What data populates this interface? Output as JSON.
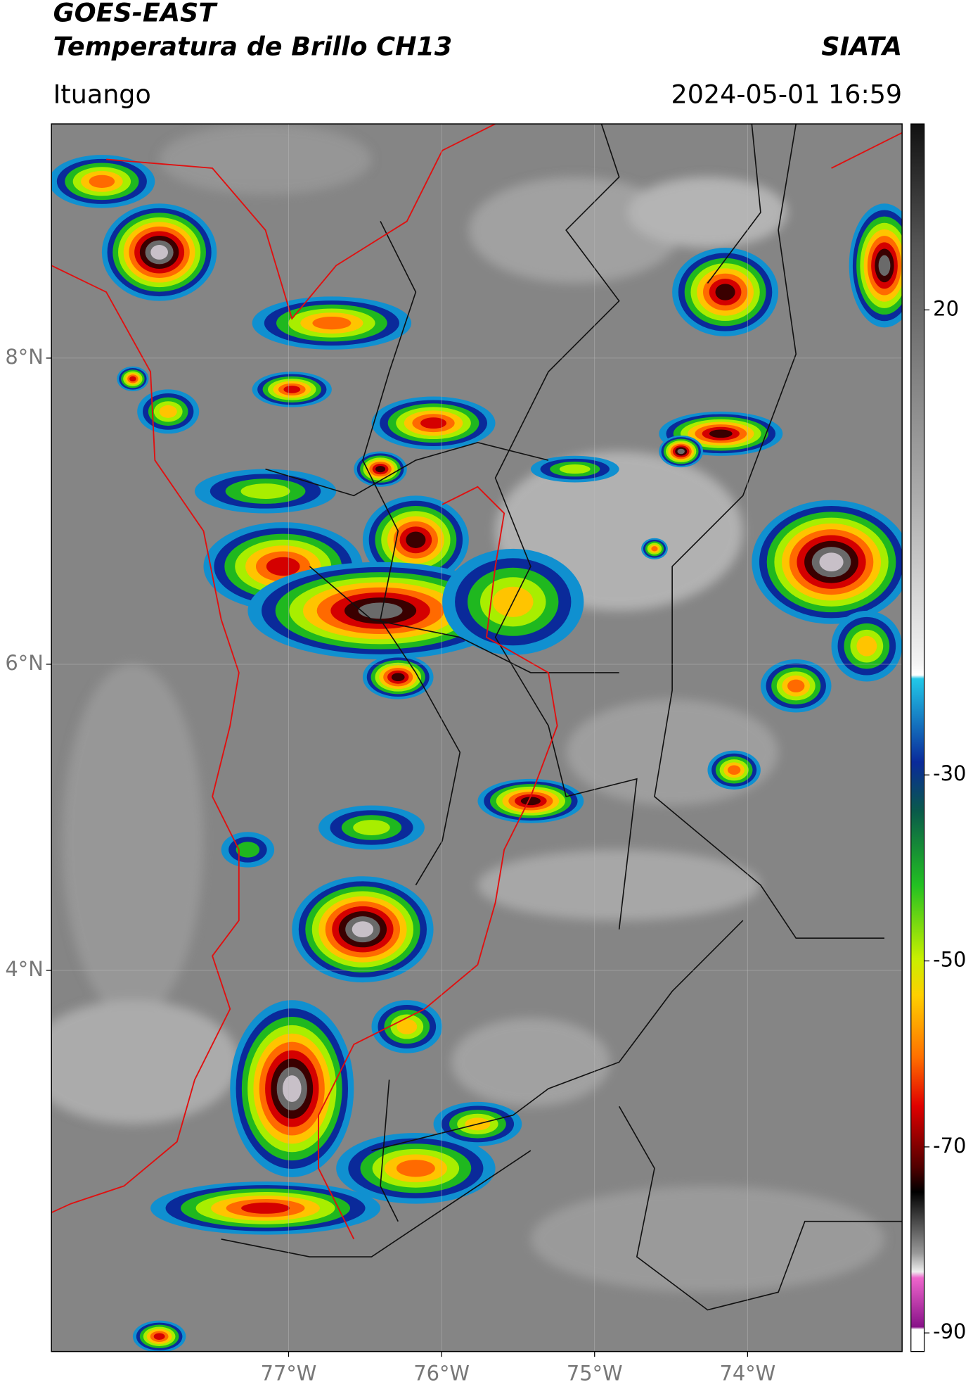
{
  "header": {
    "title": "GOES-EAST",
    "subtitle": "Temperatura de Brillo CH13",
    "source": "SIATA",
    "region": "Ituango",
    "datetime": "2024-05-01 16:59"
  },
  "map": {
    "xlim": [
      -78.55,
      -72.99
    ],
    "ylim": [
      1.51,
      9.53
    ],
    "xticks": [
      {
        "value": -77,
        "label": "77°W"
      },
      {
        "value": -76,
        "label": "76°W"
      },
      {
        "value": -75,
        "label": "75°W"
      },
      {
        "value": -74,
        "label": "74°W"
      }
    ],
    "yticks": [
      {
        "value": 8,
        "label": "8°N"
      },
      {
        "value": 6,
        "label": "6°N"
      },
      {
        "value": 4,
        "label": "4°N"
      }
    ],
    "grid": true
  },
  "colorbar": {
    "lim": [
      40,
      -92
    ],
    "ticks": [
      20,
      -30,
      -50,
      -70,
      -90
    ]
  }
}
